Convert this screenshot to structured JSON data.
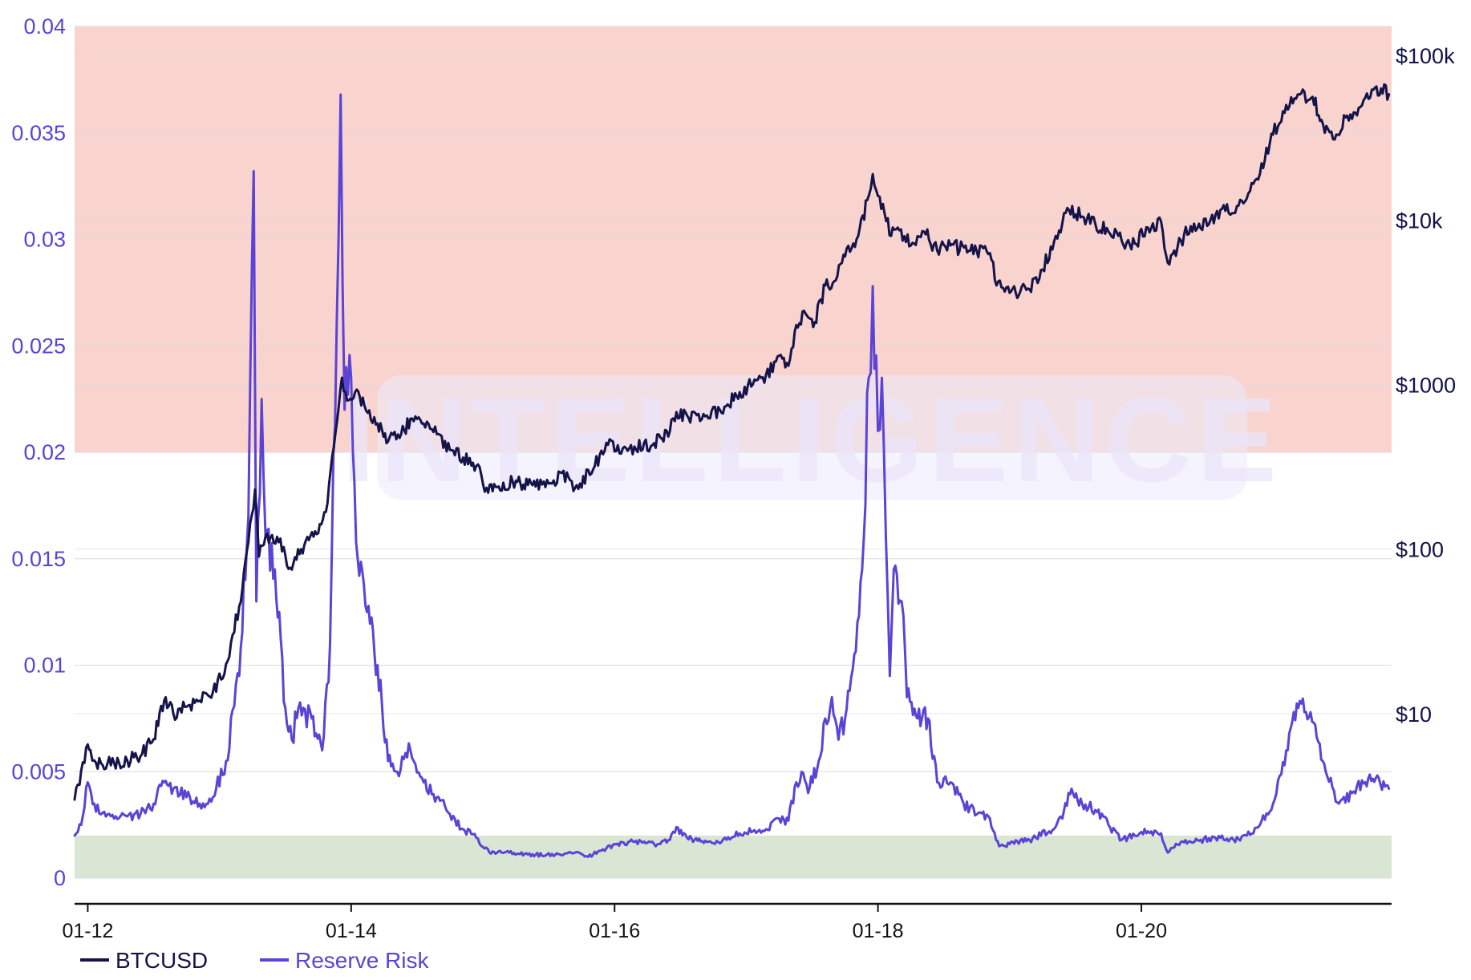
{
  "chart_data": {
    "type": "line",
    "watermark": "INTELLIGENCE",
    "left_axis": {
      "ticks": [
        0,
        0.005,
        0.01,
        0.015,
        0.02,
        0.025,
        0.03,
        0.035,
        0.04
      ],
      "tick_labels": [
        "0",
        "0.005",
        "0.01",
        "0.015",
        "0.02",
        "0.025",
        "0.03",
        "0.035",
        "0.04"
      ],
      "ylim": [
        0,
        0.04
      ],
      "color": "#5b43d6"
    },
    "right_axis": {
      "scale": "log",
      "ticks": [
        10,
        100,
        1000,
        10000,
        100000
      ],
      "tick_labels": [
        "$10",
        "$100",
        "$1000",
        "$10k",
        "$100k"
      ],
      "ylim": [
        1,
        150000
      ],
      "color": "#14144a"
    },
    "x_axis": {
      "tick_labels": [
        "01-12",
        "01-14",
        "01-16",
        "01-18",
        "01-20"
      ],
      "ticks": [
        2012.0,
        2014.0,
        2016.0,
        2018.0,
        2020.0
      ],
      "xlim": [
        2011.9,
        2021.9
      ]
    },
    "bands": [
      {
        "from": 0.02,
        "to": 0.04,
        "color": "#f9d4cf"
      },
      {
        "from": 0,
        "to": 0.002,
        "color": "#dae6d4"
      }
    ],
    "grid": true,
    "legend_position": "bottom-left",
    "series": [
      {
        "name": "BTCUSD",
        "axis": "right",
        "color": "#14144a",
        "points": [
          [
            2011.9,
            3.0
          ],
          [
            2011.95,
            4.5
          ],
          [
            2012.0,
            6.5
          ],
          [
            2012.02,
            6.0
          ],
          [
            2012.05,
            5.2
          ],
          [
            2012.1,
            5.0
          ],
          [
            2012.2,
            5.0
          ],
          [
            2012.3,
            5.2
          ],
          [
            2012.4,
            5.5
          ],
          [
            2012.5,
            7.0
          ],
          [
            2012.58,
            12.0
          ],
          [
            2012.65,
            10.0
          ],
          [
            2012.75,
            11.0
          ],
          [
            2012.85,
            12.0
          ],
          [
            2012.95,
            13.5
          ],
          [
            2013.05,
            20.0
          ],
          [
            2013.15,
            45.0
          ],
          [
            2013.22,
            110.0
          ],
          [
            2013.27,
            230.0
          ],
          [
            2013.3,
            90.0
          ],
          [
            2013.35,
            120.0
          ],
          [
            2013.45,
            110.0
          ],
          [
            2013.55,
            75.0
          ],
          [
            2013.62,
            100.0
          ],
          [
            2013.75,
            125.0
          ],
          [
            2013.82,
            190.0
          ],
          [
            2013.88,
            500.0
          ],
          [
            2013.93,
            1100.0
          ],
          [
            2013.97,
            800.0
          ],
          [
            2014.03,
            900.0
          ],
          [
            2014.1,
            750.0
          ],
          [
            2014.2,
            580.0
          ],
          [
            2014.28,
            450.0
          ],
          [
            2014.38,
            500.0
          ],
          [
            2014.45,
            620.0
          ],
          [
            2014.55,
            580.0
          ],
          [
            2014.65,
            500.0
          ],
          [
            2014.75,
            400.0
          ],
          [
            2014.85,
            360.0
          ],
          [
            2014.95,
            320.0
          ],
          [
            2015.04,
            220.0
          ],
          [
            2015.12,
            240.0
          ],
          [
            2015.25,
            260.0
          ],
          [
            2015.4,
            240.0
          ],
          [
            2015.5,
            250.0
          ],
          [
            2015.6,
            290.0
          ],
          [
            2015.7,
            235.0
          ],
          [
            2015.85,
            320.0
          ],
          [
            2015.95,
            430.0
          ],
          [
            2016.05,
            380.0
          ],
          [
            2016.15,
            420.0
          ],
          [
            2016.3,
            440.0
          ],
          [
            2016.42,
            520.0
          ],
          [
            2016.47,
            680.0
          ],
          [
            2016.55,
            650.0
          ],
          [
            2016.65,
            600.0
          ],
          [
            2016.8,
            700.0
          ],
          [
            2016.95,
            900.0
          ],
          [
            2017.05,
            1000.0
          ],
          [
            2017.15,
            1150.0
          ],
          [
            2017.25,
            1500.0
          ],
          [
            2017.32,
            1300.0
          ],
          [
            2017.38,
            2300.0
          ],
          [
            2017.45,
            2700.0
          ],
          [
            2017.52,
            2400.0
          ],
          [
            2017.6,
            4000.0
          ],
          [
            2017.68,
            4300.0
          ],
          [
            2017.75,
            6000.0
          ],
          [
            2017.85,
            8000.0
          ],
          [
            2017.93,
            14000.0
          ],
          [
            2017.96,
            19000.0
          ],
          [
            2018.0,
            14000.0
          ],
          [
            2018.05,
            11000.0
          ],
          [
            2018.1,
            8000.0
          ],
          [
            2018.15,
            9000.0
          ],
          [
            2018.25,
            7000.0
          ],
          [
            2018.35,
            8500.0
          ],
          [
            2018.45,
            6500.0
          ],
          [
            2018.55,
            7000.0
          ],
          [
            2018.7,
            6500.0
          ],
          [
            2018.85,
            6300.0
          ],
          [
            2018.9,
            4000.0
          ],
          [
            2019.0,
            3600.0
          ],
          [
            2019.15,
            3800.0
          ],
          [
            2019.25,
            5000.0
          ],
          [
            2019.35,
            8000.0
          ],
          [
            2019.45,
            11500.0
          ],
          [
            2019.55,
            10500.0
          ],
          [
            2019.65,
            9500.0
          ],
          [
            2019.75,
            8500.0
          ],
          [
            2019.85,
            7500.0
          ],
          [
            2019.95,
            7200.0
          ],
          [
            2020.05,
            9000.0
          ],
          [
            2020.15,
            9800.0
          ],
          [
            2020.2,
            5500.0
          ],
          [
            2020.3,
            7500.0
          ],
          [
            2020.4,
            9500.0
          ],
          [
            2020.5,
            9200.0
          ],
          [
            2020.6,
            11500.0
          ],
          [
            2020.7,
            11000.0
          ],
          [
            2020.8,
            13500.0
          ],
          [
            2020.9,
            19000.0
          ],
          [
            2021.0,
            33000.0
          ],
          [
            2021.1,
            50000.0
          ],
          [
            2021.2,
            58000.0
          ],
          [
            2021.3,
            56000.0
          ],
          [
            2021.38,
            38000.0
          ],
          [
            2021.48,
            33000.0
          ],
          [
            2021.55,
            42000.0
          ],
          [
            2021.65,
            48000.0
          ],
          [
            2021.75,
            62000.0
          ],
          [
            2021.82,
            63000.0
          ],
          [
            2021.88,
            58000.0
          ]
        ]
      },
      {
        "name": "Reserve Risk",
        "axis": "left",
        "color": "#5b43d6",
        "points": [
          [
            2011.9,
            0.002
          ],
          [
            2011.95,
            0.0025
          ],
          [
            2012.0,
            0.0045
          ],
          [
            2012.05,
            0.0035
          ],
          [
            2012.1,
            0.003
          ],
          [
            2012.2,
            0.0028
          ],
          [
            2012.3,
            0.0029
          ],
          [
            2012.4,
            0.003
          ],
          [
            2012.5,
            0.0035
          ],
          [
            2012.58,
            0.0045
          ],
          [
            2012.65,
            0.0042
          ],
          [
            2012.75,
            0.0038
          ],
          [
            2012.85,
            0.0035
          ],
          [
            2012.95,
            0.0038
          ],
          [
            2013.05,
            0.0055
          ],
          [
            2013.15,
            0.0095
          ],
          [
            2013.22,
            0.017
          ],
          [
            2013.26,
            0.0332
          ],
          [
            2013.28,
            0.013
          ],
          [
            2013.32,
            0.0225
          ],
          [
            2013.35,
            0.016
          ],
          [
            2013.42,
            0.0145
          ],
          [
            2013.5,
            0.008
          ],
          [
            2013.55,
            0.0065
          ],
          [
            2013.6,
            0.008
          ],
          [
            2013.7,
            0.0075
          ],
          [
            2013.78,
            0.006
          ],
          [
            2013.84,
            0.011
          ],
          [
            2013.89,
            0.026
          ],
          [
            2013.92,
            0.0368
          ],
          [
            2013.95,
            0.022
          ],
          [
            2014.0,
            0.0235
          ],
          [
            2014.05,
            0.015
          ],
          [
            2014.12,
            0.0125
          ],
          [
            2014.2,
            0.01
          ],
          [
            2014.28,
            0.0055
          ],
          [
            2014.35,
            0.005
          ],
          [
            2014.45,
            0.006
          ],
          [
            2014.55,
            0.0045
          ],
          [
            2014.65,
            0.0038
          ],
          [
            2014.75,
            0.003
          ],
          [
            2014.85,
            0.0023
          ],
          [
            2014.95,
            0.0019
          ],
          [
            2015.05,
            0.0012
          ],
          [
            2015.2,
            0.0012
          ],
          [
            2015.4,
            0.0011
          ],
          [
            2015.55,
            0.0011
          ],
          [
            2015.7,
            0.0012
          ],
          [
            2015.8,
            0.001
          ],
          [
            2015.9,
            0.0013
          ],
          [
            2016.0,
            0.0016
          ],
          [
            2016.15,
            0.0017
          ],
          [
            2016.3,
            0.0016
          ],
          [
            2016.42,
            0.0018
          ],
          [
            2016.47,
            0.0024
          ],
          [
            2016.55,
            0.0019
          ],
          [
            2016.7,
            0.0017
          ],
          [
            2016.85,
            0.0018
          ],
          [
            2016.95,
            0.0021
          ],
          [
            2017.05,
            0.0022
          ],
          [
            2017.15,
            0.0023
          ],
          [
            2017.25,
            0.0028
          ],
          [
            2017.32,
            0.0027
          ],
          [
            2017.38,
            0.0045
          ],
          [
            2017.42,
            0.005
          ],
          [
            2017.47,
            0.004
          ],
          [
            2017.55,
            0.0055
          ],
          [
            2017.6,
            0.0075
          ],
          [
            2017.65,
            0.0085
          ],
          [
            2017.7,
            0.0065
          ],
          [
            2017.75,
            0.0075
          ],
          [
            2017.82,
            0.0105
          ],
          [
            2017.88,
            0.0145
          ],
          [
            2017.93,
            0.0235
          ],
          [
            2017.96,
            0.0278
          ],
          [
            2018.0,
            0.021
          ],
          [
            2018.03,
            0.0235
          ],
          [
            2018.06,
            0.016
          ],
          [
            2018.09,
            0.0095
          ],
          [
            2018.12,
            0.0145
          ],
          [
            2018.18,
            0.013
          ],
          [
            2018.22,
            0.0085
          ],
          [
            2018.3,
            0.0075
          ],
          [
            2018.38,
            0.0075
          ],
          [
            2018.45,
            0.0045
          ],
          [
            2018.55,
            0.0045
          ],
          [
            2018.65,
            0.0035
          ],
          [
            2018.75,
            0.003
          ],
          [
            2018.85,
            0.0028
          ],
          [
            2018.92,
            0.0015
          ],
          [
            2019.0,
            0.0016
          ],
          [
            2019.15,
            0.0018
          ],
          [
            2019.3,
            0.0022
          ],
          [
            2019.4,
            0.0028
          ],
          [
            2019.47,
            0.0042
          ],
          [
            2019.55,
            0.0035
          ],
          [
            2019.65,
            0.0032
          ],
          [
            2019.75,
            0.0025
          ],
          [
            2019.85,
            0.0018
          ],
          [
            2019.95,
            0.002
          ],
          [
            2020.05,
            0.0022
          ],
          [
            2020.15,
            0.0021
          ],
          [
            2020.2,
            0.0012
          ],
          [
            2020.3,
            0.0017
          ],
          [
            2020.45,
            0.0018
          ],
          [
            2020.6,
            0.0019
          ],
          [
            2020.7,
            0.0018
          ],
          [
            2020.8,
            0.002
          ],
          [
            2020.9,
            0.0025
          ],
          [
            2021.0,
            0.0035
          ],
          [
            2021.05,
            0.0048
          ],
          [
            2021.1,
            0.006
          ],
          [
            2021.18,
            0.0082
          ],
          [
            2021.25,
            0.0078
          ],
          [
            2021.32,
            0.0072
          ],
          [
            2021.4,
            0.005
          ],
          [
            2021.5,
            0.0035
          ],
          [
            2021.6,
            0.004
          ],
          [
            2021.7,
            0.0045
          ],
          [
            2021.78,
            0.0047
          ],
          [
            2021.85,
            0.0043
          ],
          [
            2021.88,
            0.0042
          ]
        ]
      }
    ],
    "legend": [
      {
        "label": "BTCUSD",
        "color": "#14144a"
      },
      {
        "label": "Reserve Risk",
        "color": "#5b43d6"
      }
    ]
  }
}
